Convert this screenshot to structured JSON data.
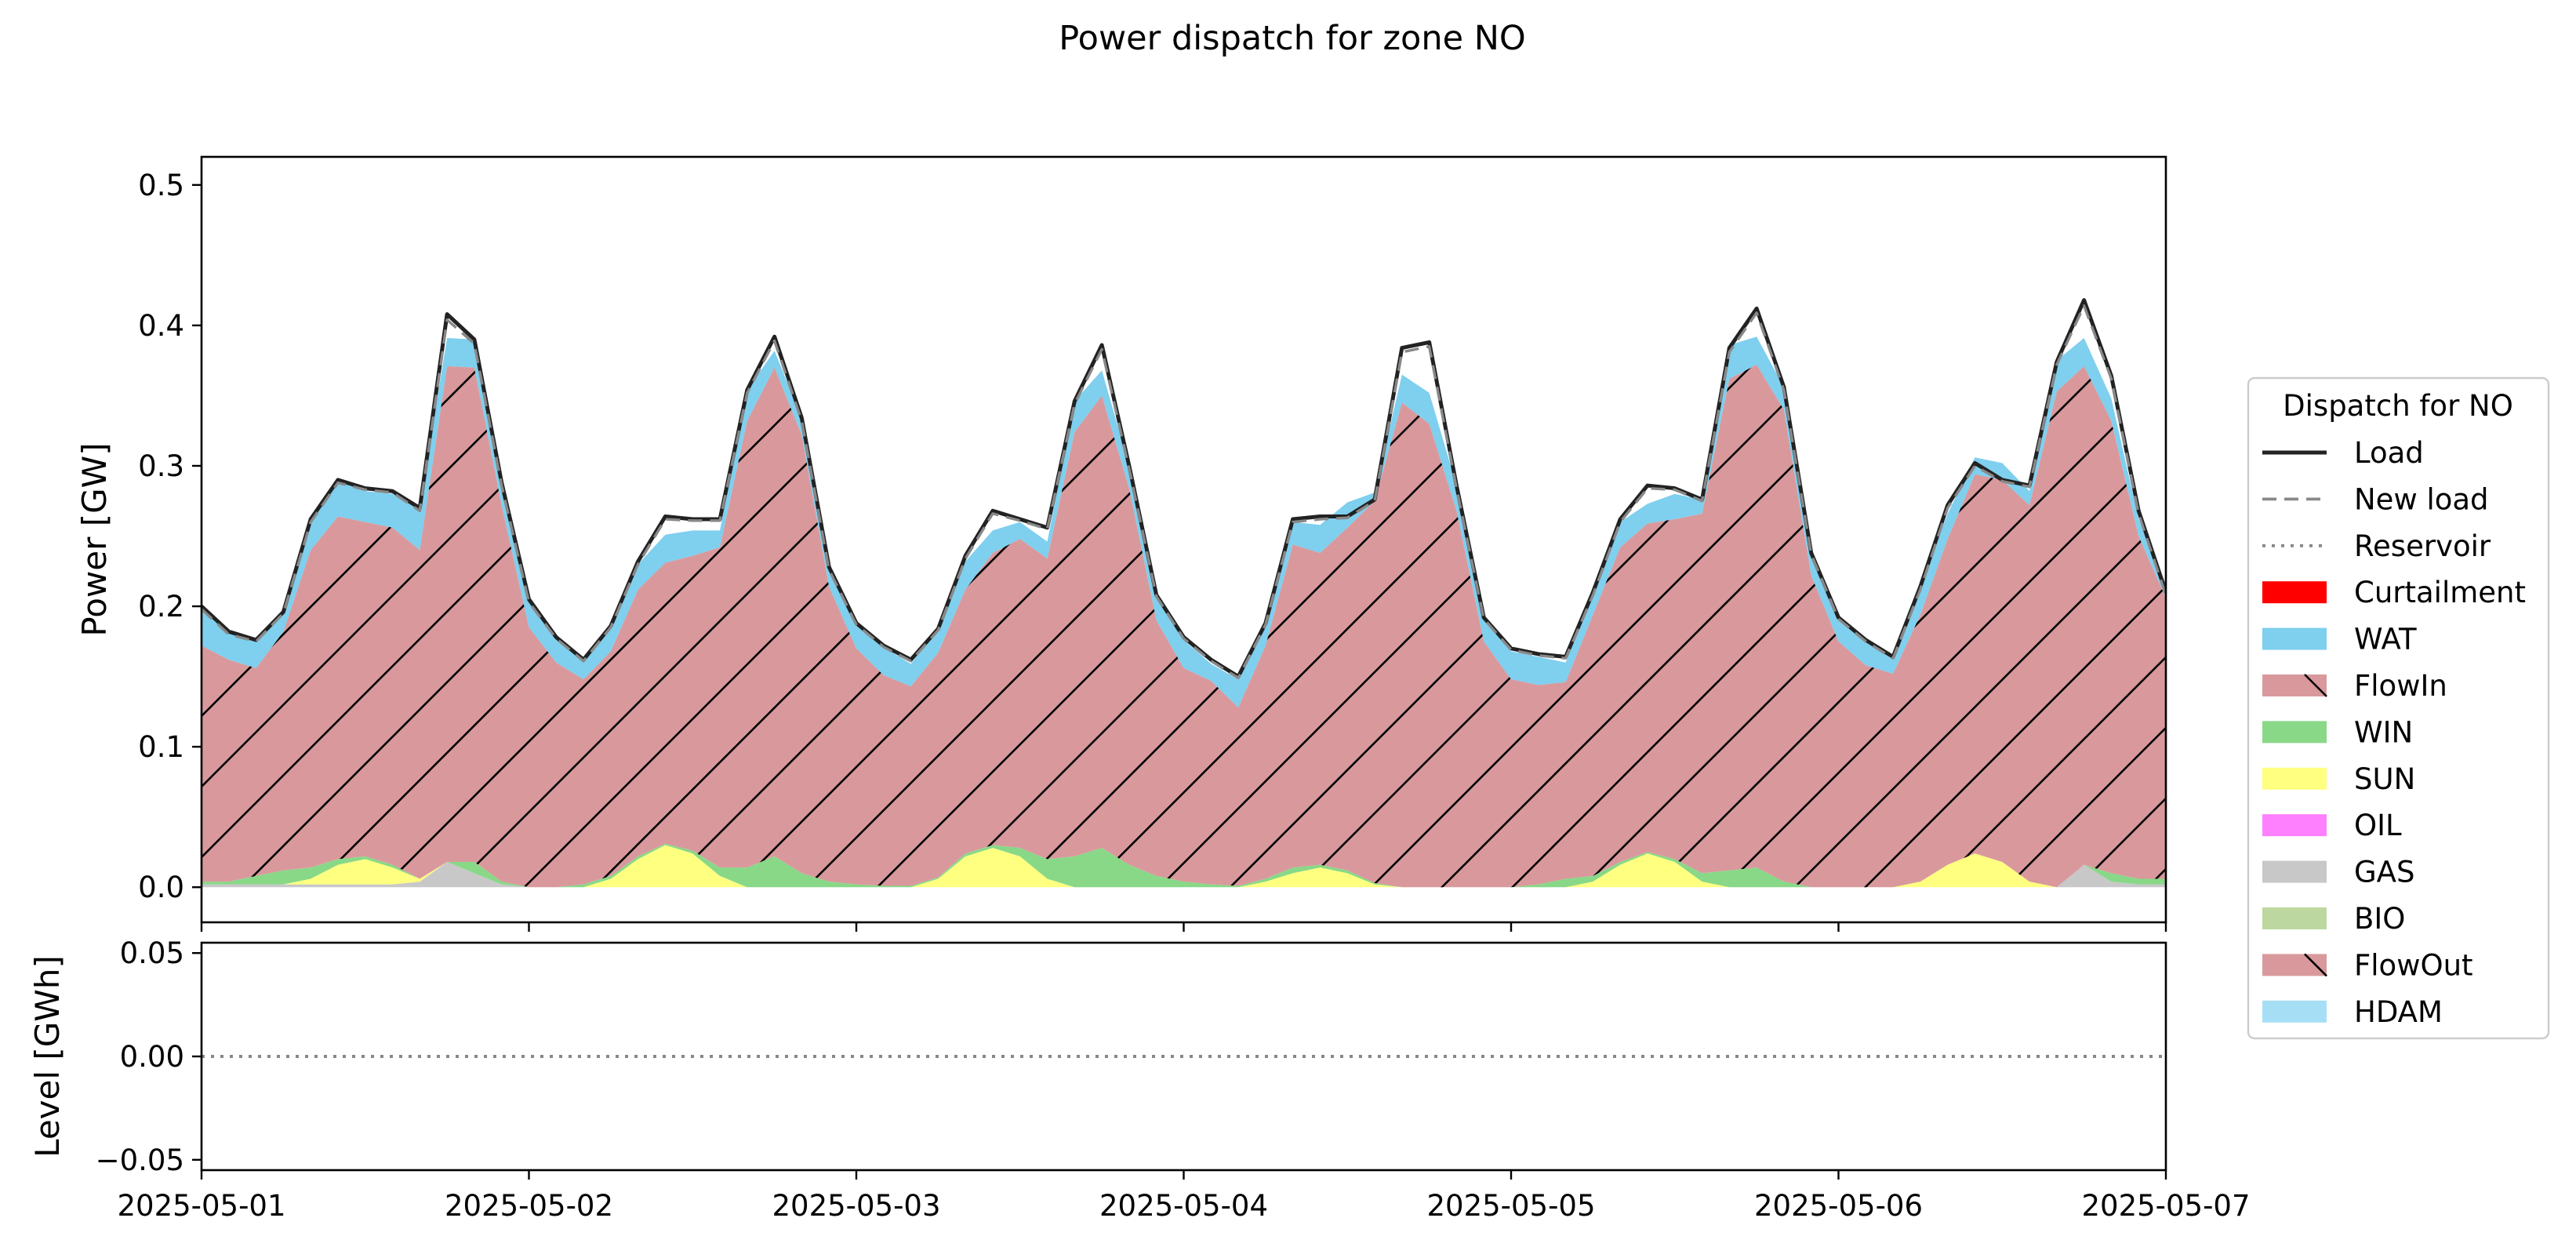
{
  "figure": {
    "title": "Power dispatch for zone NO"
  },
  "chart_data": [
    {
      "type": "area",
      "title": "Power dispatch for zone NO",
      "xlabel": "",
      "ylabel": "Power [GW]",
      "x_type": "datetime",
      "xlim": [
        "2025-05-01",
        "2025-05-07"
      ],
      "ylim": [
        -0.025,
        0.52
      ],
      "x_tick_labels": [
        "2025-05-01",
        "2025-05-02",
        "2025-05-03",
        "2025-05-04",
        "2025-05-05",
        "2025-05-06",
        "2025-05-07"
      ],
      "y_ticks": [
        0.0,
        0.1,
        0.2,
        0.3,
        0.4,
        0.5
      ],
      "y_tick_labels": [
        "0.0",
        "0.1",
        "0.2",
        "0.3",
        "0.4",
        "0.5"
      ],
      "grid": false,
      "x": [
        "2025-05-01 00:00",
        "2025-05-01 02:00",
        "2025-05-01 04:00",
        "2025-05-01 06:00",
        "2025-05-01 08:00",
        "2025-05-01 10:00",
        "2025-05-01 12:00",
        "2025-05-01 14:00",
        "2025-05-01 16:00",
        "2025-05-01 18:00",
        "2025-05-01 20:00",
        "2025-05-01 22:00",
        "2025-05-02 00:00",
        "2025-05-02 02:00",
        "2025-05-02 04:00",
        "2025-05-02 06:00",
        "2025-05-02 08:00",
        "2025-05-02 10:00",
        "2025-05-02 12:00",
        "2025-05-02 14:00",
        "2025-05-02 16:00",
        "2025-05-02 18:00",
        "2025-05-02 20:00",
        "2025-05-02 22:00",
        "2025-05-03 00:00",
        "2025-05-03 02:00",
        "2025-05-03 04:00",
        "2025-05-03 06:00",
        "2025-05-03 08:00",
        "2025-05-03 10:00",
        "2025-05-03 12:00",
        "2025-05-03 14:00",
        "2025-05-03 16:00",
        "2025-05-03 18:00",
        "2025-05-03 20:00",
        "2025-05-03 22:00",
        "2025-05-04 00:00",
        "2025-05-04 02:00",
        "2025-05-04 04:00",
        "2025-05-04 06:00",
        "2025-05-04 08:00",
        "2025-05-04 10:00",
        "2025-05-04 12:00",
        "2025-05-04 14:00",
        "2025-05-04 16:00",
        "2025-05-04 18:00",
        "2025-05-04 20:00",
        "2025-05-04 22:00",
        "2025-05-05 00:00",
        "2025-05-05 02:00",
        "2025-05-05 04:00",
        "2025-05-05 06:00",
        "2025-05-05 08:00",
        "2025-05-05 10:00",
        "2025-05-05 12:00",
        "2025-05-05 14:00",
        "2025-05-05 16:00",
        "2025-05-05 18:00",
        "2025-05-05 20:00",
        "2025-05-05 22:00",
        "2025-05-06 00:00",
        "2025-05-06 02:00",
        "2025-05-06 04:00",
        "2025-05-06 06:00",
        "2025-05-06 08:00",
        "2025-05-06 10:00",
        "2025-05-06 12:00",
        "2025-05-06 14:00",
        "2025-05-06 16:00",
        "2025-05-06 18:00",
        "2025-05-06 20:00",
        "2025-05-06 22:00",
        "2025-05-07 00:00"
      ],
      "stacked_series": [
        {
          "name": "GAS",
          "color": "#c8c8c8",
          "hatch": false,
          "values": [
            0.002,
            0.002,
            0.002,
            0.002,
            0.002,
            0.002,
            0.002,
            0.002,
            0.004,
            0.018,
            0.01,
            0.002,
            0,
            0,
            0,
            0,
            0,
            0,
            0,
            0,
            0,
            0,
            0,
            0,
            0,
            0,
            0,
            0,
            0,
            0,
            0,
            0,
            0,
            0,
            0,
            0,
            0,
            0,
            0,
            0,
            0,
            0,
            0,
            0,
            0,
            0,
            0,
            0,
            0,
            0,
            0,
            0,
            0,
            0,
            0,
            0,
            0,
            0,
            0,
            0,
            0,
            0,
            0,
            0,
            0,
            0,
            0,
            0,
            0,
            0.016,
            0.004,
            0.002,
            0.002
          ]
        },
        {
          "name": "SUN",
          "color": "#ffff80",
          "hatch": false,
          "values": [
            0,
            0,
            0,
            0,
            0.004,
            0.014,
            0.018,
            0.012,
            0.002,
            0,
            0,
            0,
            0,
            0,
            0,
            0.006,
            0.02,
            0.03,
            0.024,
            0.008,
            0,
            0,
            0,
            0,
            0,
            0,
            0,
            0.006,
            0.022,
            0.028,
            0.022,
            0.006,
            0,
            0,
            0,
            0,
            0,
            0,
            0,
            0.004,
            0.01,
            0.014,
            0.01,
            0.002,
            0,
            0,
            0,
            0,
            0,
            0,
            0,
            0.004,
            0.016,
            0.024,
            0.018,
            0.004,
            0,
            0,
            0,
            0,
            0,
            0,
            0,
            0.004,
            0.016,
            0.024,
            0.018,
            0.004,
            0,
            0,
            0,
            0,
            0
          ]
        },
        {
          "name": "WIN",
          "color": "#88d888",
          "hatch": false,
          "values": [
            0.002,
            0.002,
            0.006,
            0.01,
            0.008,
            0.004,
            0.002,
            0.002,
            0,
            0,
            0.008,
            0.002,
            0,
            0,
            0.002,
            0.002,
            0.002,
            0.001,
            0.002,
            0.006,
            0.014,
            0.022,
            0.01,
            0.004,
            0.002,
            0.001,
            0.001,
            0.001,
            0.002,
            0.002,
            0.006,
            0.014,
            0.022,
            0.028,
            0.016,
            0.008,
            0.004,
            0.002,
            0.001,
            0.002,
            0.004,
            0.002,
            0.002,
            0.001,
            0,
            0,
            0,
            0,
            0,
            0.002,
            0.006,
            0.004,
            0.002,
            0.001,
            0.002,
            0.006,
            0.012,
            0.014,
            0.004,
            0,
            0,
            0,
            0,
            0,
            0,
            0,
            0,
            0,
            0,
            0,
            0.006,
            0.004,
            0.004
          ]
        },
        {
          "name": "FlowIn",
          "color": "#d9999c",
          "hatch": true,
          "values": [
            0.168,
            0.158,
            0.148,
            0.17,
            0.226,
            0.244,
            0.238,
            0.24,
            0.234,
            0.353,
            0.352,
            0.268,
            0.185,
            0.16,
            0.146,
            0.16,
            0.19,
            0.2,
            0.21,
            0.228,
            0.318,
            0.348,
            0.312,
            0.21,
            0.168,
            0.15,
            0.142,
            0.16,
            0.188,
            0.208,
            0.22,
            0.214,
            0.302,
            0.322,
            0.268,
            0.182,
            0.152,
            0.145,
            0.127,
            0.166,
            0.23,
            0.222,
            0.244,
            0.272,
            0.345,
            0.33,
            0.268,
            0.175,
            0.148,
            0.142,
            0.14,
            0.186,
            0.224,
            0.234,
            0.242,
            0.256,
            0.35,
            0.358,
            0.336,
            0.222,
            0.175,
            0.158,
            0.152,
            0.19,
            0.232,
            0.27,
            0.272,
            0.268,
            0.353,
            0.355,
            0.322,
            0.244,
            0.2
          ]
        },
        {
          "name": "WAT",
          "color": "#7fcfee",
          "hatch": false,
          "values": [
            0.028,
            0.02,
            0.02,
            0.012,
            0.024,
            0.026,
            0.022,
            0.024,
            0.032,
            0.02,
            0.02,
            0.016,
            0.018,
            0.02,
            0.014,
            0.018,
            0.018,
            0.02,
            0.018,
            0.012,
            0.022,
            0.012,
            0.012,
            0.012,
            0.016,
            0.02,
            0.016,
            0.018,
            0.02,
            0.016,
            0.012,
            0.012,
            0.022,
            0.018,
            0.016,
            0.018,
            0.02,
            0.012,
            0.02,
            0.016,
            0.016,
            0.02,
            0.018,
            0.006,
            0.02,
            0.022,
            0.018,
            0.016,
            0.02,
            0.02,
            0.014,
            0.018,
            0.018,
            0.014,
            0.018,
            0.01,
            0.024,
            0.02,
            0.016,
            0.016,
            0.018,
            0.018,
            0.01,
            0.02,
            0.018,
            0.012,
            0.012,
            0.01,
            0.022,
            0.02,
            0.016,
            0.012,
            0.01
          ]
        },
        {
          "name": "Curtailment",
          "color": "#ff0000",
          "hatch": false,
          "values": []
        },
        {
          "name": "OIL",
          "color": "#ff80ff",
          "hatch": false,
          "values": []
        },
        {
          "name": "BIO",
          "color": "#bcd8a0",
          "hatch": false,
          "values": []
        },
        {
          "name": "FlowOut",
          "color": "#d9999c",
          "hatch": true,
          "values": []
        },
        {
          "name": "HDAM",
          "color": "#a6dff5",
          "hatch": false,
          "values": []
        }
      ],
      "line_series": [
        {
          "name": "Load",
          "style": "solid",
          "color": "#222222",
          "values": [
            0.2,
            0.182,
            0.176,
            0.196,
            0.262,
            0.29,
            0.284,
            0.282,
            0.27,
            0.408,
            0.39,
            0.288,
            0.205,
            0.178,
            0.162,
            0.186,
            0.232,
            0.264,
            0.262,
            0.262,
            0.354,
            0.392,
            0.334,
            0.228,
            0.188,
            0.172,
            0.162,
            0.184,
            0.236,
            0.268,
            0.262,
            0.256,
            0.346,
            0.386,
            0.3,
            0.208,
            0.178,
            0.162,
            0.15,
            0.188,
            0.262,
            0.264,
            0.264,
            0.276,
            0.384,
            0.388,
            0.286,
            0.192,
            0.17,
            0.166,
            0.164,
            0.21,
            0.262,
            0.286,
            0.284,
            0.276,
            0.384,
            0.412,
            0.356,
            0.238,
            0.192,
            0.176,
            0.164,
            0.214,
            0.272,
            0.302,
            0.29,
            0.286,
            0.374,
            0.418,
            0.364,
            0.268,
            0.21
          ]
        },
        {
          "name": "New load",
          "style": "dashed",
          "color": "#888888",
          "values": [
            0.198,
            0.18,
            0.175,
            0.195,
            0.26,
            0.288,
            0.283,
            0.281,
            0.268,
            0.404,
            0.387,
            0.286,
            0.203,
            0.177,
            0.161,
            0.185,
            0.23,
            0.262,
            0.261,
            0.261,
            0.352,
            0.389,
            0.332,
            0.226,
            0.187,
            0.171,
            0.161,
            0.183,
            0.234,
            0.266,
            0.261,
            0.255,
            0.344,
            0.383,
            0.298,
            0.207,
            0.177,
            0.161,
            0.149,
            0.187,
            0.26,
            0.262,
            0.263,
            0.275,
            0.381,
            0.385,
            0.284,
            0.191,
            0.169,
            0.165,
            0.163,
            0.208,
            0.26,
            0.284,
            0.283,
            0.275,
            0.381,
            0.409,
            0.354,
            0.237,
            0.191,
            0.175,
            0.163,
            0.212,
            0.27,
            0.3,
            0.289,
            0.285,
            0.372,
            0.414,
            0.362,
            0.266,
            0.208
          ]
        }
      ],
      "legend": {
        "title": "Dispatch for NO",
        "placement": "right",
        "entries": [
          {
            "label": "Load",
            "kind": "line",
            "style": "solid",
            "color": "#222222"
          },
          {
            "label": "New load",
            "kind": "line",
            "style": "dashed",
            "color": "#888888"
          },
          {
            "label": "Reservoir",
            "kind": "line",
            "style": "dotted",
            "color": "#888888"
          },
          {
            "label": "Curtailment",
            "kind": "patch",
            "color": "#ff0000",
            "hatch": false
          },
          {
            "label": "WAT",
            "kind": "patch",
            "color": "#7fcfee",
            "hatch": false
          },
          {
            "label": "FlowIn",
            "kind": "patch",
            "color": "#d9999c",
            "hatch": true
          },
          {
            "label": "WIN",
            "kind": "patch",
            "color": "#88d888",
            "hatch": false
          },
          {
            "label": "SUN",
            "kind": "patch",
            "color": "#ffff80",
            "hatch": false
          },
          {
            "label": "OIL",
            "kind": "patch",
            "color": "#ff80ff",
            "hatch": false
          },
          {
            "label": "GAS",
            "kind": "patch",
            "color": "#c8c8c8",
            "hatch": false
          },
          {
            "label": "BIO",
            "kind": "patch",
            "color": "#bcd8a0",
            "hatch": false
          },
          {
            "label": "FlowOut",
            "kind": "patch",
            "color": "#d9999c",
            "hatch": true
          },
          {
            "label": "HDAM",
            "kind": "patch",
            "color": "#a6dff5",
            "hatch": false
          }
        ]
      }
    },
    {
      "type": "line",
      "title": "",
      "xlabel": "",
      "ylabel": "Level [GWh]",
      "x_type": "datetime",
      "xlim": [
        "2025-05-01",
        "2025-05-07"
      ],
      "ylim": [
        -0.055,
        0.055
      ],
      "y_ticks": [
        -0.05,
        0.0,
        0.05
      ],
      "y_tick_labels": [
        "−0.05",
        "0.00",
        "0.05"
      ],
      "x_tick_labels": [
        "2025-05-01",
        "2025-05-02",
        "2025-05-03",
        "2025-05-04",
        "2025-05-05",
        "2025-05-06",
        "2025-05-07"
      ],
      "grid": false,
      "series": [
        {
          "name": "Reservoir",
          "style": "dotted",
          "color": "#888888",
          "x": [
            "2025-05-01",
            "2025-05-07"
          ],
          "values": [
            0.0,
            0.0
          ]
        }
      ]
    }
  ]
}
